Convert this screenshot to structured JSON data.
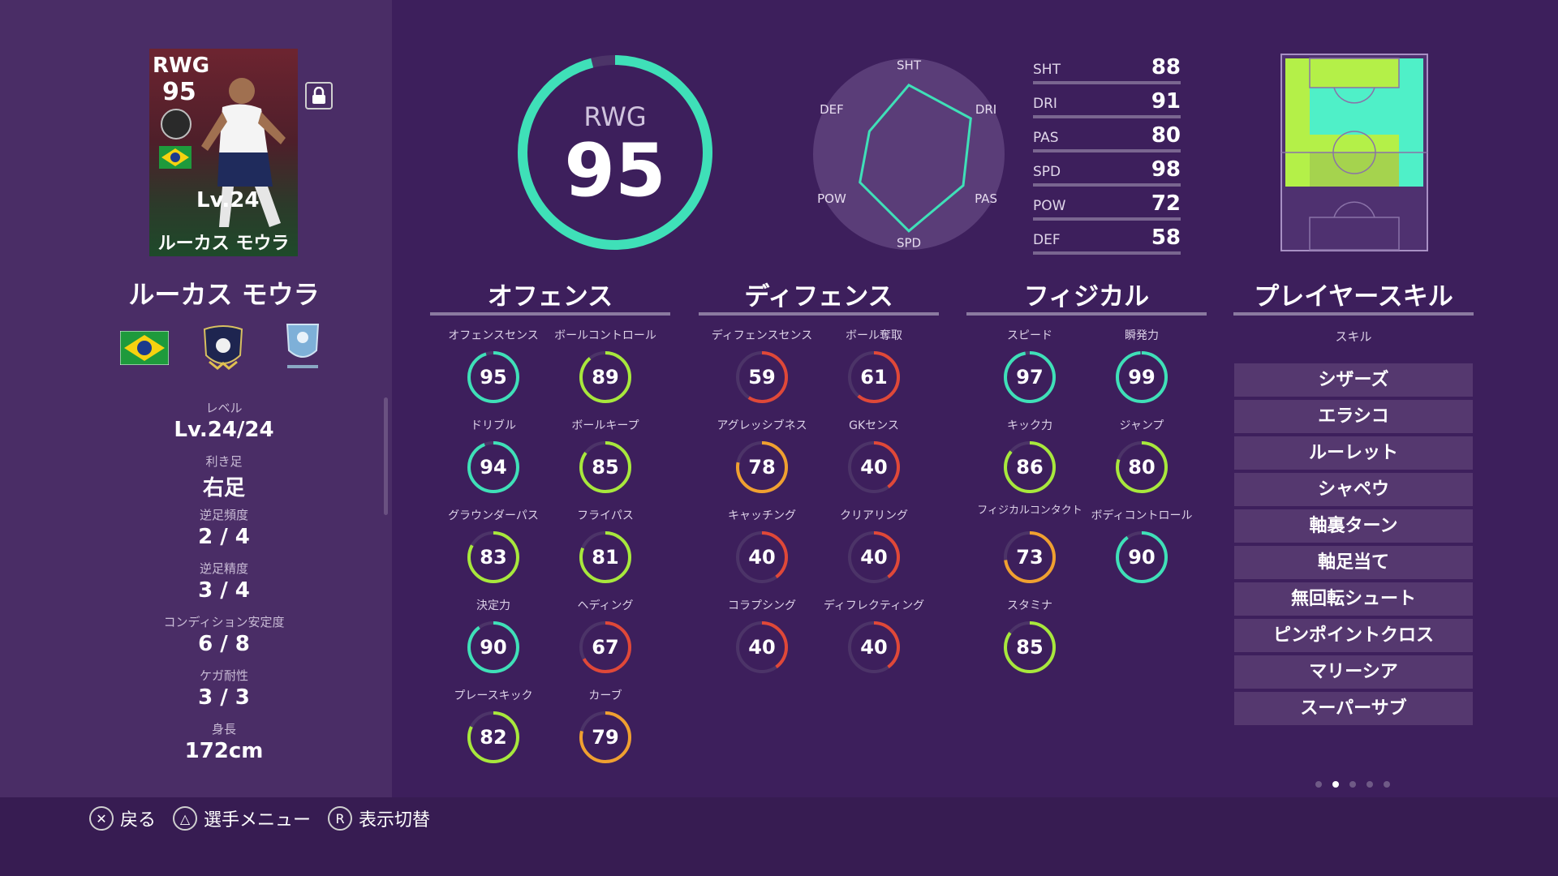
{
  "card": {
    "position": "RWG",
    "rating": "95",
    "level": "Lv.24",
    "name": "ルーカス モウラ",
    "nationality_flag": "brazil-flag"
  },
  "player": {
    "name": "ルーカス モウラ",
    "team_emblem": "tottenham-emblem",
    "league_emblem": "english-league-emblem"
  },
  "info": [
    {
      "label": "レベル",
      "value": "Lv.24/24"
    },
    {
      "label": "利き足",
      "value": "右足"
    },
    {
      "label": "逆足頻度",
      "value": "2 / 4"
    },
    {
      "label": "逆足精度",
      "value": "3 / 4"
    },
    {
      "label": "コンディション安定度",
      "value": "6 / 8"
    },
    {
      "label": "ケガ耐性",
      "value": "3 / 3"
    },
    {
      "label": "身長",
      "value": "172cm"
    }
  ],
  "overall": {
    "position": "RWG",
    "rating": "95",
    "max": 99
  },
  "summary_stats": [
    {
      "label": "SHT",
      "value": 88
    },
    {
      "label": "DRI",
      "value": 91
    },
    {
      "label": "PAS",
      "value": 80
    },
    {
      "label": "SPD",
      "value": 98
    },
    {
      "label": "POW",
      "value": 72
    },
    {
      "label": "DEF",
      "value": 58
    }
  ],
  "sections": [
    {
      "title": "オフェンス",
      "attributes": [
        {
          "label": "オフェンスセンス",
          "value": 95
        },
        {
          "label": "ボールコントロール",
          "value": 89
        },
        {
          "label": "ドリブル",
          "value": 94
        },
        {
          "label": "ボールキープ",
          "value": 85
        },
        {
          "label": "グラウンダーパス",
          "value": 83
        },
        {
          "label": "フライパス",
          "value": 81
        },
        {
          "label": "決定力",
          "value": 90
        },
        {
          "label": "ヘディング",
          "value": 67
        },
        {
          "label": "プレースキック",
          "value": 82
        },
        {
          "label": "カーブ",
          "value": 79
        }
      ]
    },
    {
      "title": "ディフェンス",
      "attributes": [
        {
          "label": "ディフェンスセンス",
          "value": 59
        },
        {
          "label": "ボール奪取",
          "value": 61
        },
        {
          "label": "アグレッシブネス",
          "value": 78
        },
        {
          "label": "GKセンス",
          "value": 40
        },
        {
          "label": "キャッチング",
          "value": 40
        },
        {
          "label": "クリアリング",
          "value": 40
        },
        {
          "label": "コラプシング",
          "value": 40
        },
        {
          "label": "ディフレクティング",
          "value": 40
        }
      ]
    },
    {
      "title": "フィジカル",
      "attributes": [
        {
          "label": "スピード",
          "value": 97
        },
        {
          "label": "瞬発力",
          "value": 99
        },
        {
          "label": "キック力",
          "value": 86
        },
        {
          "label": "ジャンプ",
          "value": 80
        },
        {
          "label": "フィジカルコンタクト",
          "value": 73
        },
        {
          "label": "ボディコントロール",
          "value": 90
        },
        {
          "label": "スタミナ",
          "value": 85
        }
      ]
    }
  ],
  "skills_section": {
    "title": "プレイヤースキル",
    "header": "スキル",
    "skills": [
      "シザーズ",
      "エラシコ",
      "ルーレット",
      "シャペウ",
      "軸裏ターン",
      "軸足当て",
      "無回転シュート",
      "ピンポイントクロス",
      "マリーシア",
      "スーパーサブ"
    ]
  },
  "pagination": {
    "count": 5,
    "active": 1
  },
  "controls": [
    {
      "icon": "cross-button-icon",
      "symbol": "✕",
      "label": "戻る"
    },
    {
      "icon": "triangle-button-icon",
      "symbol": "△",
      "label": "選手メニュー"
    },
    {
      "icon": "r-button-icon",
      "symbol": "R",
      "label": "表示切替"
    }
  ],
  "colors": {
    "background": "#3d1f5c",
    "panel": "#4a2d66",
    "accent_teal": "#3fe0b8",
    "green": "#a8e83c",
    "orange": "#f0a030",
    "red": "#e04838",
    "pitch_teal": "#4ff0c8",
    "pitch_green": "#b4f048"
  }
}
